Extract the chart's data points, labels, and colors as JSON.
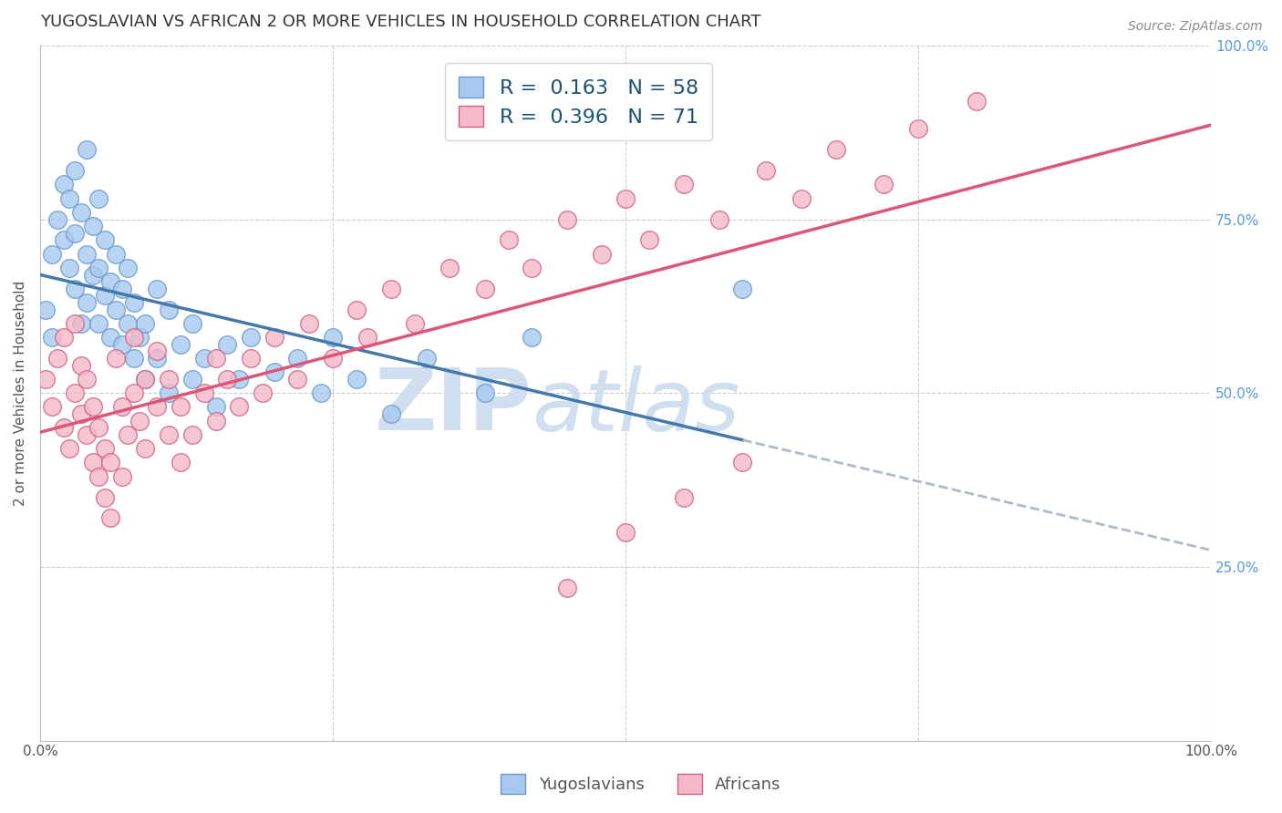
{
  "title": "YUGOSLAVIAN VS AFRICAN 2 OR MORE VEHICLES IN HOUSEHOLD CORRELATION CHART",
  "source_text": "Source: ZipAtlas.com",
  "ylabel": "2 or more Vehicles in Household",
  "xlim": [
    0.0,
    1.0
  ],
  "ylim": [
    0.0,
    1.0
  ],
  "series": [
    {
      "name": "Yugoslavians",
      "color": "#a8c8f0",
      "edge_color": "#6699cc",
      "R": 0.163,
      "N": 58,
      "x": [
        0.005,
        0.01,
        0.01,
        0.015,
        0.02,
        0.02,
        0.025,
        0.025,
        0.03,
        0.03,
        0.03,
        0.035,
        0.035,
        0.04,
        0.04,
        0.04,
        0.045,
        0.045,
        0.05,
        0.05,
        0.05,
        0.055,
        0.055,
        0.06,
        0.06,
        0.065,
        0.065,
        0.07,
        0.07,
        0.075,
        0.075,
        0.08,
        0.08,
        0.085,
        0.09,
        0.09,
        0.1,
        0.1,
        0.11,
        0.11,
        0.12,
        0.13,
        0.13,
        0.14,
        0.15,
        0.16,
        0.17,
        0.18,
        0.2,
        0.22,
        0.24,
        0.25,
        0.27,
        0.3,
        0.33,
        0.38,
        0.42,
        0.6
      ],
      "y": [
        0.62,
        0.7,
        0.58,
        0.75,
        0.72,
        0.8,
        0.68,
        0.78,
        0.65,
        0.73,
        0.82,
        0.6,
        0.76,
        0.63,
        0.7,
        0.85,
        0.67,
        0.74,
        0.6,
        0.68,
        0.78,
        0.64,
        0.72,
        0.58,
        0.66,
        0.62,
        0.7,
        0.57,
        0.65,
        0.6,
        0.68,
        0.55,
        0.63,
        0.58,
        0.52,
        0.6,
        0.55,
        0.65,
        0.5,
        0.62,
        0.57,
        0.52,
        0.6,
        0.55,
        0.48,
        0.57,
        0.52,
        0.58,
        0.53,
        0.55,
        0.5,
        0.58,
        0.52,
        0.47,
        0.55,
        0.5,
        0.58,
        0.65
      ]
    },
    {
      "name": "Africans",
      "color": "#f5b8c8",
      "edge_color": "#d06080",
      "R": 0.396,
      "N": 71,
      "x": [
        0.005,
        0.01,
        0.015,
        0.02,
        0.02,
        0.025,
        0.03,
        0.03,
        0.035,
        0.035,
        0.04,
        0.04,
        0.045,
        0.045,
        0.05,
        0.05,
        0.055,
        0.055,
        0.06,
        0.06,
        0.065,
        0.07,
        0.07,
        0.075,
        0.08,
        0.08,
        0.085,
        0.09,
        0.09,
        0.1,
        0.1,
        0.11,
        0.11,
        0.12,
        0.12,
        0.13,
        0.14,
        0.15,
        0.15,
        0.16,
        0.17,
        0.18,
        0.19,
        0.2,
        0.22,
        0.23,
        0.25,
        0.27,
        0.28,
        0.3,
        0.32,
        0.35,
        0.38,
        0.4,
        0.42,
        0.45,
        0.48,
        0.5,
        0.52,
        0.55,
        0.58,
        0.62,
        0.65,
        0.68,
        0.72,
        0.75,
        0.8,
        0.45,
        0.5,
        0.55,
        0.6
      ],
      "y": [
        0.52,
        0.48,
        0.55,
        0.45,
        0.58,
        0.42,
        0.5,
        0.6,
        0.47,
        0.54,
        0.44,
        0.52,
        0.4,
        0.48,
        0.38,
        0.45,
        0.35,
        0.42,
        0.32,
        0.4,
        0.55,
        0.38,
        0.48,
        0.44,
        0.5,
        0.58,
        0.46,
        0.52,
        0.42,
        0.48,
        0.56,
        0.44,
        0.52,
        0.4,
        0.48,
        0.44,
        0.5,
        0.46,
        0.55,
        0.52,
        0.48,
        0.55,
        0.5,
        0.58,
        0.52,
        0.6,
        0.55,
        0.62,
        0.58,
        0.65,
        0.6,
        0.68,
        0.65,
        0.72,
        0.68,
        0.75,
        0.7,
        0.78,
        0.72,
        0.8,
        0.75,
        0.82,
        0.78,
        0.85,
        0.8,
        0.88,
        0.92,
        0.22,
        0.3,
        0.35,
        0.4
      ]
    }
  ],
  "trend_blue_color": "#4477aa",
  "trend_blue_dash_color": "#aabbcc",
  "trend_pink_color": "#dd5577",
  "watermark_zip": "ZIP",
  "watermark_atlas": "atlas",
  "watermark_color": "#d0dff0",
  "grid_color": "#cccccc",
  "background_color": "#ffffff",
  "title_fontsize": 13,
  "legend_R_N_color": "#1a5276"
}
